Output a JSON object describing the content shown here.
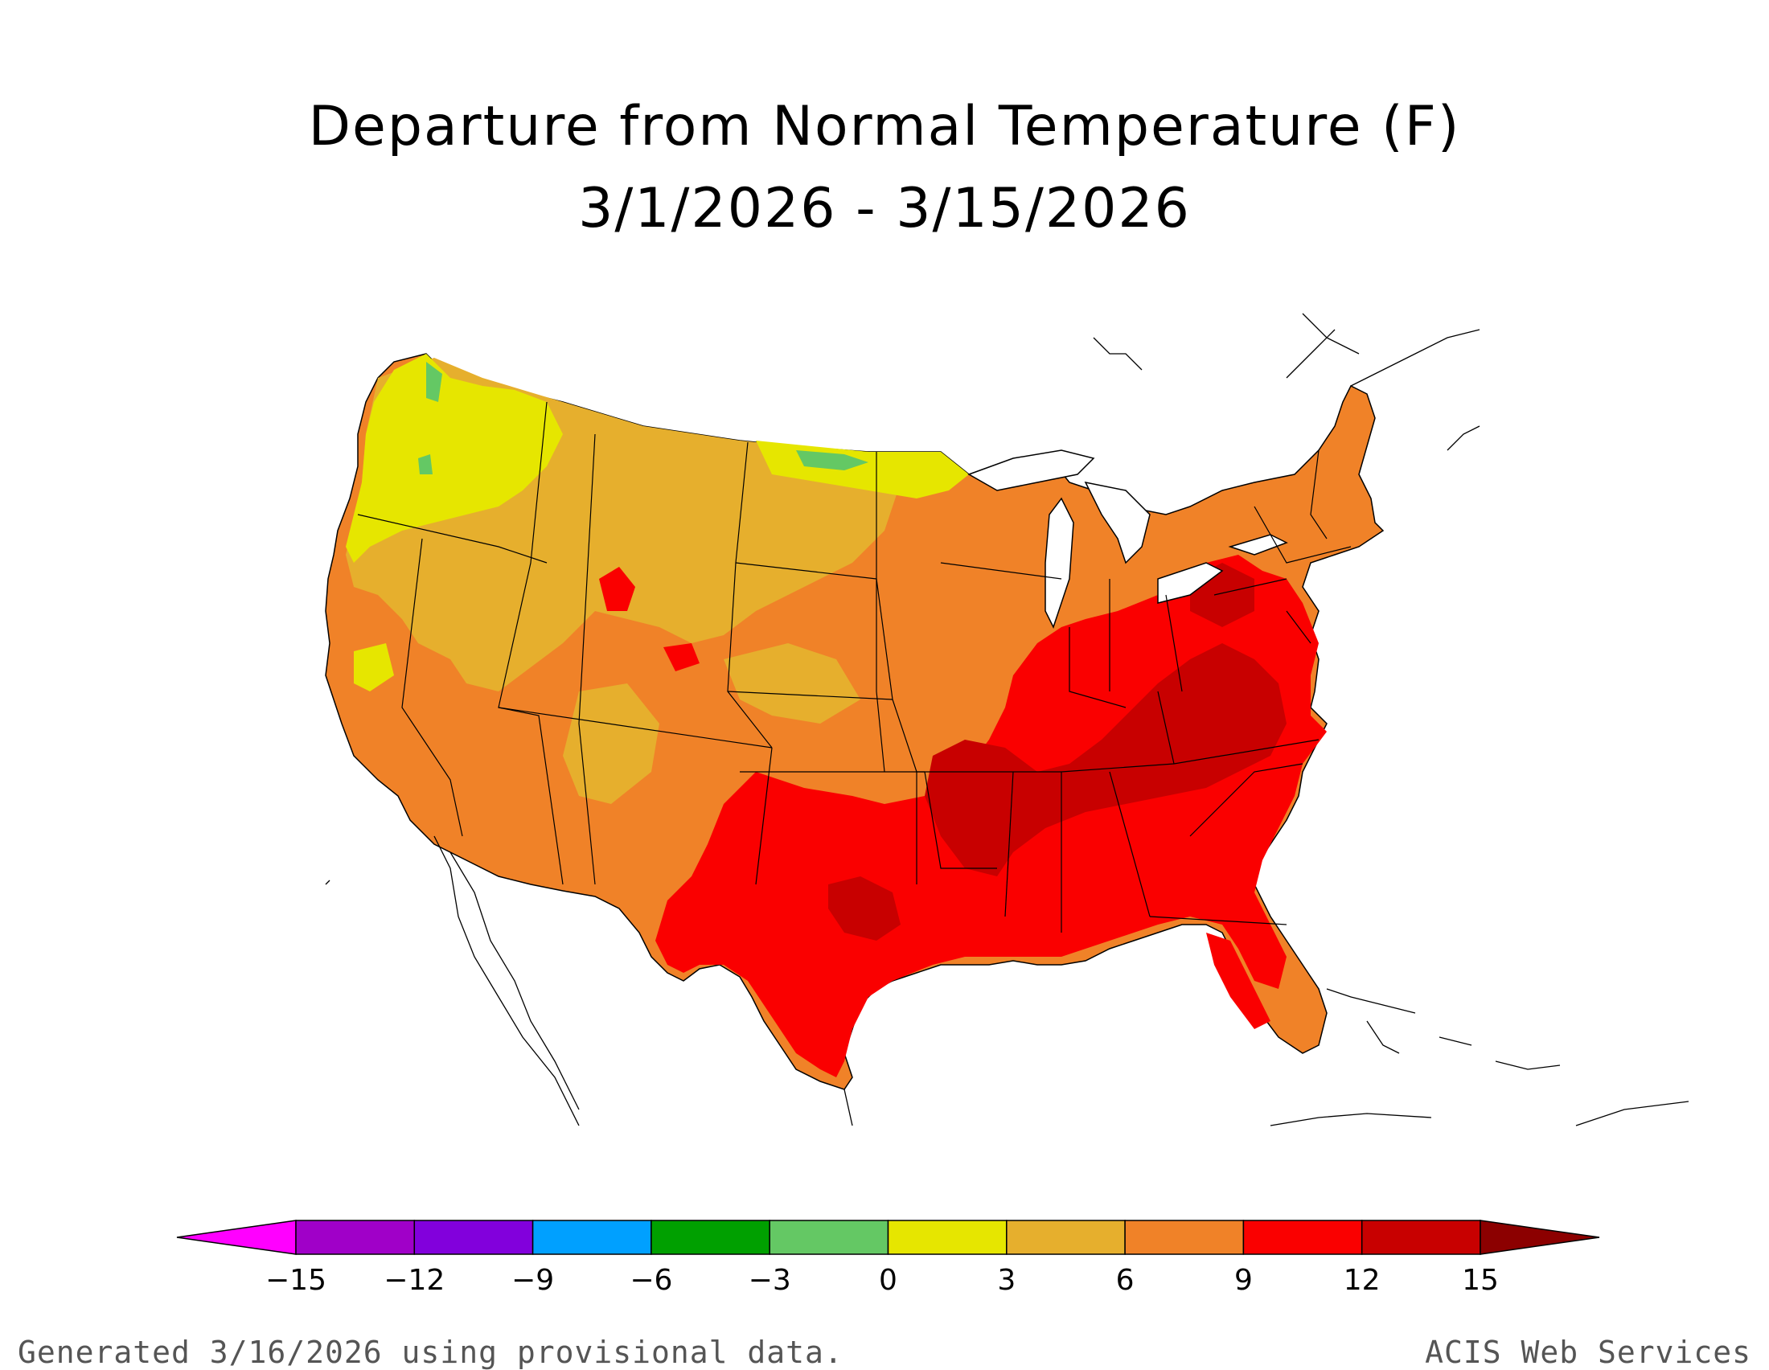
{
  "title": {
    "line1": "Departure from Normal Temperature (F)",
    "line2": "3/1/2026 - 3/15/2026"
  },
  "legend": {
    "ticks": [
      "-15",
      "-12",
      "-9",
      "-6",
      "-3",
      "0",
      "3",
      "6",
      "9",
      "12",
      "15"
    ],
    "colors": [
      "#ff00ff",
      "#a000c8",
      "#8200dc",
      "#00a0ff",
      "#00a000",
      "#64c864",
      "#e6e600",
      "#e6af2d",
      "#f08228",
      "#fa0000",
      "#c80000",
      "#8c0000"
    ]
  },
  "regions": [
    {
      "name": "Pacific Northwest",
      "category": "0 to 3",
      "color": "#e6e600"
    },
    {
      "name": "Northern Rockies / Plains",
      "category": "3 to 6",
      "color": "#e6af2d"
    },
    {
      "name": "Southwest",
      "category": "6 to 9",
      "color": "#f08228"
    },
    {
      "name": "Texas / Lower Mississippi Valley",
      "category": "9 to 12",
      "color": "#fa0000"
    },
    {
      "name": "Tennessee Valley / Mid-South",
      "category": "12 to 15",
      "color": "#c80000"
    },
    {
      "name": "Southeast / Ohio Valley",
      "category": "9 to 12",
      "color": "#fa0000"
    },
    {
      "name": "Northeast / Great Lakes",
      "category": "6 to 9",
      "color": "#f08228"
    },
    {
      "name": "Florida Peninsula",
      "category": "6 to 9",
      "color": "#f08228"
    },
    {
      "name": "Northern Border (MN/ND)",
      "category": "-3 to 0",
      "color": "#64c864"
    }
  ],
  "footer": {
    "left": "Generated 3/16/2026 using provisional data.",
    "right": "ACIS Web Services"
  }
}
